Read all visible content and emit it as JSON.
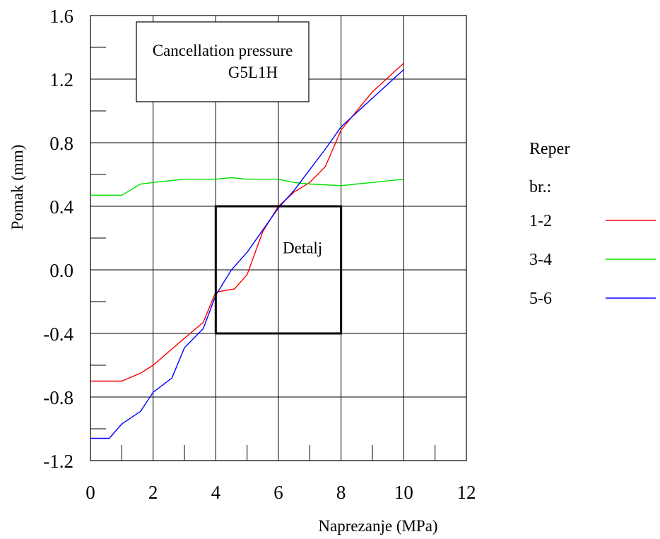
{
  "chart_data": {
    "type": "line",
    "title": "",
    "xlabel": "Naprezanje (MPa)",
    "ylabel": "Pomak (mm)",
    "xlim": [
      0,
      12
    ],
    "ylim": [
      -1.2,
      1.6
    ],
    "grid": true,
    "x_ticks": [
      0,
      2,
      4,
      6,
      8,
      10,
      12
    ],
    "x_tick_labels": [
      "0",
      "2",
      "4",
      "6",
      "8",
      "10",
      "12"
    ],
    "y_ticks": [
      -1.2,
      -0.8,
      -0.4,
      0.0,
      0.4,
      0.8,
      1.2,
      1.6
    ],
    "y_tick_labels": [
      "-1.2",
      "-0.8",
      "-0.4",
      "0.0",
      "0.4",
      "0.8",
      "1.2",
      "1.6"
    ],
    "annotation_box": {
      "lines": [
        "Cancellation pressure",
        "G5L1H"
      ]
    },
    "detail_box": {
      "label": "Detalj",
      "x": [
        4,
        8
      ],
      "y": [
        -0.4,
        0.4
      ]
    },
    "legend": {
      "title_lines": [
        "Reper",
        "br.:"
      ],
      "placement": "right"
    },
    "series": [
      {
        "name": "1-2",
        "color": "#ff0000",
        "x": [
          0,
          1,
          1.6,
          2,
          3,
          3.6,
          4,
          4.6,
          5,
          5.5,
          6,
          6.5,
          7,
          7.5,
          8,
          9,
          10
        ],
        "y": [
          -0.7,
          -0.7,
          -0.65,
          -0.6,
          -0.43,
          -0.33,
          -0.14,
          -0.12,
          -0.03,
          0.24,
          0.4,
          0.49,
          0.55,
          0.65,
          0.88,
          1.12,
          1.3
        ]
      },
      {
        "name": "3-4",
        "color": "#00dd00",
        "x": [
          0,
          1,
          1.6,
          2,
          2.5,
          3,
          4,
          4.5,
          5,
          6,
          6.5,
          7,
          8,
          8.5,
          9,
          10
        ],
        "y": [
          0.47,
          0.47,
          0.54,
          0.55,
          0.56,
          0.57,
          0.57,
          0.58,
          0.57,
          0.57,
          0.55,
          0.54,
          0.53,
          0.54,
          0.55,
          0.57
        ]
      },
      {
        "name": "5-6",
        "color": "#0000ff",
        "x": [
          0,
          0.6,
          1,
          1.6,
          2,
          2.6,
          3,
          3.6,
          4,
          4.5,
          5,
          5.5,
          6,
          6.5,
          7,
          7.5,
          8,
          9,
          10
        ],
        "y": [
          -1.06,
          -1.06,
          -0.97,
          -0.89,
          -0.77,
          -0.68,
          -0.49,
          -0.37,
          -0.16,
          0.0,
          0.11,
          0.25,
          0.39,
          0.5,
          0.63,
          0.76,
          0.9,
          1.08,
          1.26
        ]
      }
    ]
  }
}
